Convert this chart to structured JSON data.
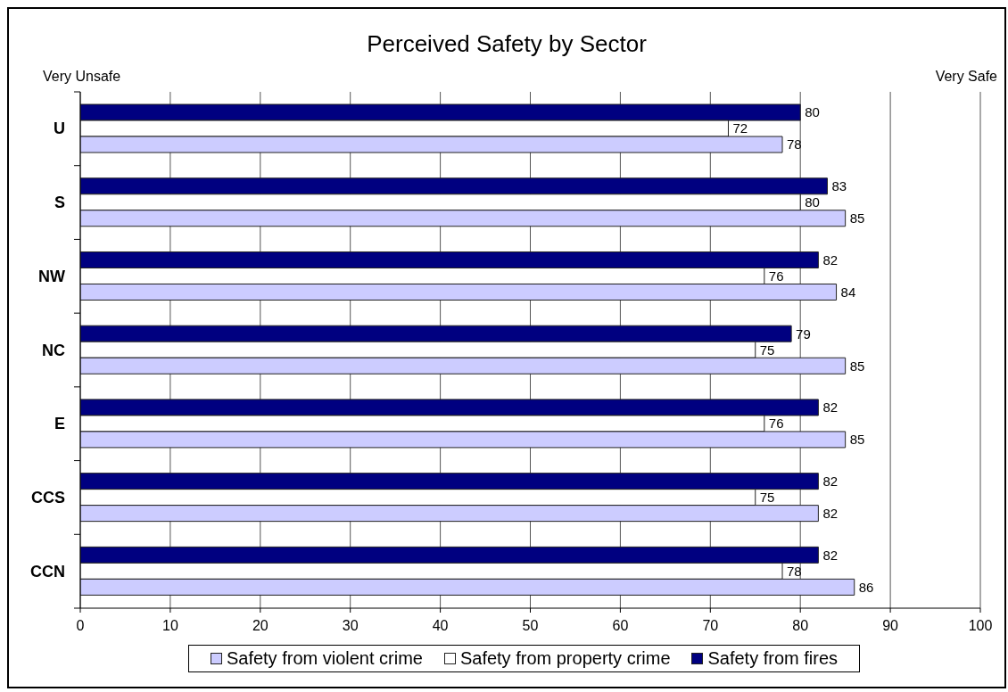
{
  "chart_data": {
    "type": "bar",
    "orientation": "horizontal",
    "title": "Perceived Safety by Sector",
    "annotations": [
      "Very Unsafe",
      "Very Safe"
    ],
    "categories": [
      "U",
      "S",
      "NW",
      "NC",
      "E",
      "CCS",
      "CCN"
    ],
    "series": [
      {
        "name": "Safety from violent crime",
        "color": "#ccccff",
        "values": [
          78,
          85,
          84,
          85,
          85,
          82,
          86
        ]
      },
      {
        "name": "Safety from property crime",
        "color": "#ffffff",
        "values": [
          72,
          80,
          76,
          75,
          76,
          75,
          78
        ]
      },
      {
        "name": "Safety from fires",
        "color": "#000080",
        "values": [
          80,
          83,
          82,
          79,
          82,
          82,
          82
        ]
      }
    ],
    "xlim": [
      0,
      100
    ],
    "xticks": [
      0,
      10,
      20,
      30,
      40,
      50,
      60,
      70,
      80,
      90,
      100
    ],
    "grid": "x",
    "legend": "bottom",
    "data_labels": true
  }
}
